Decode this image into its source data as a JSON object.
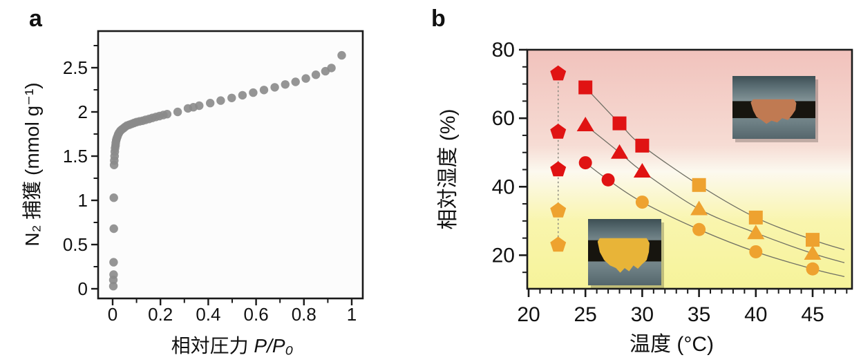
{
  "panels": [
    {
      "label": "a",
      "xlabel_text": "相対圧力 ",
      "xlabel_var": "P/P₀",
      "ylabel": "N₂ 捕獲 (mmol g⁻¹)"
    },
    {
      "label": "b",
      "xlabel": "温度 (°C)",
      "ylabel": "相対湿度 (%)"
    }
  ],
  "insets": [
    {
      "name": "yellow-powder-photo",
      "position": "bottom-left",
      "powder_color": "#e8b438",
      "tape_color": "#17150f",
      "vial_top": "#3d4f54",
      "vial_mid": "#87979a",
      "vial_bottom": "#55666c"
    },
    {
      "name": "orange-powder-photo",
      "position": "top-right",
      "powder_color": "#c07a52",
      "tape_color": "#17150f",
      "vial_top": "#3d4f54",
      "vial_mid": "#87979a",
      "vial_bottom": "#55666c"
    }
  ],
  "chart_data": [
    {
      "type": "scatter",
      "panel": "a",
      "title": "",
      "xlabel": "相対圧力 P/P₀",
      "ylabel": "N₂ 捕獲 (mmol g⁻¹)",
      "xlim": [
        -0.06,
        1.05
      ],
      "ylim": [
        -0.12,
        2.92
      ],
      "xticks": [
        0,
        0.2,
        0.4,
        0.6,
        0.8,
        1
      ],
      "xtick_labels": [
        "0",
        "0.2",
        "0.4",
        "0.6",
        "0.8",
        "1"
      ],
      "yticks": [
        0,
        0.5,
        1,
        1.5,
        2,
        2.5
      ],
      "ytick_labels": [
        "0",
        "0.5",
        "1",
        "1.5",
        "2",
        "2.5"
      ],
      "minor_x_step": 0.1,
      "minor_y_step": 0.25,
      "grid": false,
      "marker_color": "#8a8a8a",
      "points": [
        [
          0.003,
          0.03
        ],
        [
          0.003,
          0.1
        ],
        [
          0.004,
          0.16
        ],
        [
          0.004,
          0.3
        ],
        [
          0.005,
          0.68
        ],
        [
          0.005,
          1.03
        ],
        [
          0.006,
          1.4
        ],
        [
          0.007,
          1.45
        ],
        [
          0.008,
          1.5
        ],
        [
          0.009,
          1.55
        ],
        [
          0.01,
          1.59
        ],
        [
          0.012,
          1.62
        ],
        [
          0.013,
          1.65
        ],
        [
          0.015,
          1.68
        ],
        [
          0.017,
          1.7
        ],
        [
          0.02,
          1.72
        ],
        [
          0.023,
          1.745
        ],
        [
          0.027,
          1.765
        ],
        [
          0.032,
          1.785
        ],
        [
          0.038,
          1.8
        ],
        [
          0.045,
          1.815
        ],
        [
          0.052,
          1.83
        ],
        [
          0.06,
          1.845
        ],
        [
          0.07,
          1.855
        ],
        [
          0.08,
          1.865
        ],
        [
          0.09,
          1.875
        ],
        [
          0.1,
          1.885
        ],
        [
          0.112,
          1.893
        ],
        [
          0.125,
          1.9
        ],
        [
          0.138,
          1.91
        ],
        [
          0.152,
          1.92
        ],
        [
          0.166,
          1.932
        ],
        [
          0.181,
          1.943
        ],
        [
          0.196,
          1.953
        ],
        [
          0.212,
          1.965
        ],
        [
          0.228,
          1.975
        ],
        [
          0.272,
          2.0
        ],
        [
          0.315,
          2.04
        ],
        [
          0.338,
          2.053
        ],
        [
          0.362,
          2.07
        ],
        [
          0.408,
          2.1
        ],
        [
          0.452,
          2.128
        ],
        [
          0.498,
          2.158
        ],
        [
          0.543,
          2.188
        ],
        [
          0.588,
          2.218
        ],
        [
          0.633,
          2.248
        ],
        [
          0.678,
          2.278
        ],
        [
          0.722,
          2.31
        ],
        [
          0.765,
          2.34
        ],
        [
          0.808,
          2.378
        ],
        [
          0.85,
          2.42
        ],
        [
          0.89,
          2.46
        ],
        [
          0.915,
          2.497
        ],
        [
          0.958,
          2.64
        ]
      ]
    },
    {
      "type": "line-scatter",
      "panel": "b",
      "title": "",
      "xlabel": "温度 (°C)",
      "ylabel": "相対湿度 (%)",
      "xlim": [
        19.9,
        48.5
      ],
      "ylim": [
        10.2,
        80
      ],
      "xticks": [
        20,
        25,
        30,
        35,
        40,
        45
      ],
      "yticks": [
        20,
        40,
        60,
        80
      ],
      "minor_x_step": 1,
      "minor_y_step": 5,
      "grid": false,
      "legend": "none",
      "colors": {
        "red": "#e01313",
        "orange": "#eea22f"
      },
      "line_color": "#6f6f64",
      "dotted_line_color": "#8a8a80",
      "background_gradient": [
        "#f1c2bc",
        "#f6dcd4",
        "#fcf9ef",
        "#f9f5ad",
        "#f6f39a"
      ],
      "series": [
        {
          "name": "square",
          "marker": "square",
          "points": [
            {
              "x": 25,
              "y": 69,
              "color": "red"
            },
            {
              "x": 28,
              "y": 58.5,
              "color": "red"
            },
            {
              "x": 30,
              "y": 52,
              "color": "red"
            },
            {
              "x": 35,
              "y": 40.5,
              "color": "orange"
            },
            {
              "x": 40,
              "y": 31,
              "color": "orange"
            },
            {
              "x": 45,
              "y": 24.5,
              "color": "orange"
            }
          ]
        },
        {
          "name": "triangle",
          "marker": "triangle",
          "points": [
            {
              "x": 25,
              "y": 58,
              "color": "red"
            },
            {
              "x": 28,
              "y": 50,
              "color": "red"
            },
            {
              "x": 30,
              "y": 44.5,
              "color": "red"
            },
            {
              "x": 35,
              "y": 33.5,
              "color": "orange"
            },
            {
              "x": 40,
              "y": 26.5,
              "color": "orange"
            },
            {
              "x": 45,
              "y": 20.5,
              "color": "orange"
            }
          ]
        },
        {
          "name": "circle",
          "marker": "circle",
          "points": [
            {
              "x": 25,
              "y": 47,
              "color": "red"
            },
            {
              "x": 27,
              "y": 42,
              "color": "red"
            },
            {
              "x": 30,
              "y": 35.5,
              "color": "orange"
            },
            {
              "x": 35,
              "y": 27.5,
              "color": "orange"
            },
            {
              "x": 40,
              "y": 21,
              "color": "orange"
            },
            {
              "x": 45,
              "y": 16,
              "color": "orange"
            }
          ]
        },
        {
          "name": "pentagon",
          "marker": "pentagon",
          "line_style": "dotted-vertical",
          "points": [
            {
              "x": 22.6,
              "y": 73,
              "color": "red"
            },
            {
              "x": 22.6,
              "y": 56,
              "color": "red"
            },
            {
              "x": 22.6,
              "y": 45,
              "color": "red"
            },
            {
              "x": 22.6,
              "y": 33,
              "color": "orange"
            },
            {
              "x": 22.6,
              "y": 23,
              "color": "orange"
            }
          ]
        }
      ]
    }
  ]
}
